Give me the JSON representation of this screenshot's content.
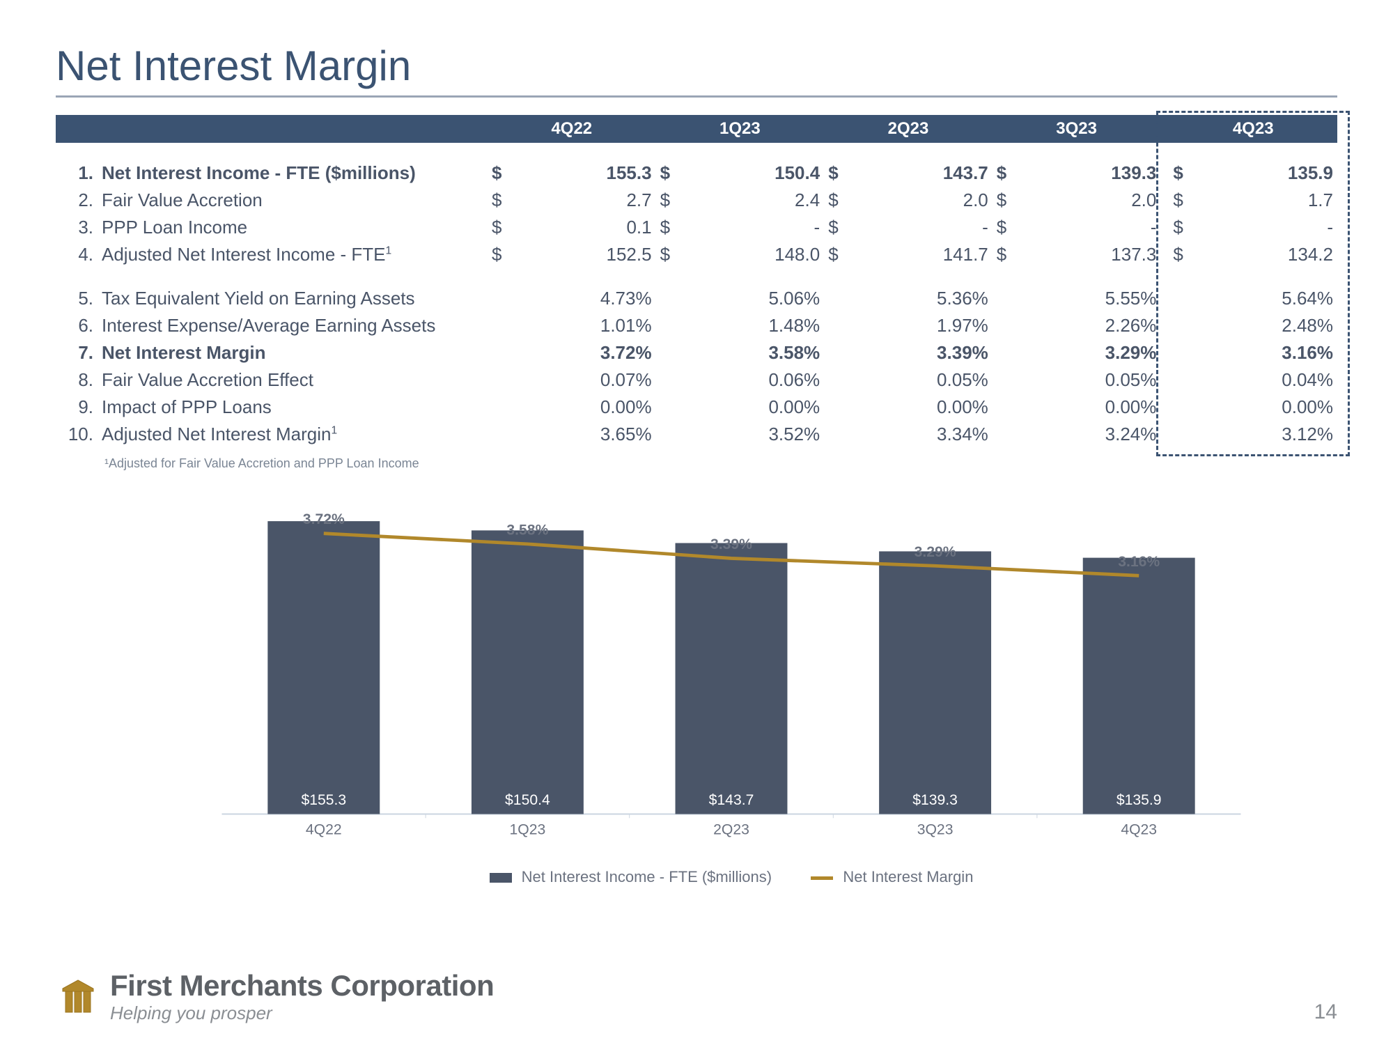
{
  "title": "Net Interest Margin",
  "periods": [
    "4Q22",
    "1Q23",
    "2Q23",
    "3Q23",
    "4Q23"
  ],
  "rows": [
    {
      "n": "1.",
      "label": "Net Interest Income - FTE ($millions)",
      "bold": true,
      "dollar": true,
      "vals": [
        "155.3",
        "150.4",
        "143.7",
        "139.3",
        "135.9"
      ]
    },
    {
      "n": "2.",
      "label": "Fair Value Accretion",
      "dollar": true,
      "vals": [
        "2.7",
        "2.4",
        "2.0",
        "2.0",
        "1.7"
      ]
    },
    {
      "n": "3.",
      "label": "PPP Loan Income",
      "dollar": true,
      "vals": [
        "0.1",
        "-",
        "-",
        "-",
        "-"
      ]
    },
    {
      "n": "4.",
      "label": "Adjusted Net Interest Income - FTE",
      "sup": "1",
      "dollar": true,
      "vals": [
        "152.5",
        "148.0",
        "141.7",
        "137.3",
        "134.2"
      ]
    },
    {
      "spacer": true
    },
    {
      "n": "5.",
      "label": "Tax Equivalent Yield on Earning Assets",
      "vals": [
        "4.73%",
        "5.06%",
        "5.36%",
        "5.55%",
        "5.64%"
      ]
    },
    {
      "n": "6.",
      "label": "Interest Expense/Average Earning Assets",
      "vals": [
        "1.01%",
        "1.48%",
        "1.97%",
        "2.26%",
        "2.48%"
      ]
    },
    {
      "n": "7.",
      "label": "Net Interest Margin",
      "bold": true,
      "vals": [
        "3.72%",
        "3.58%",
        "3.39%",
        "3.29%",
        "3.16%"
      ]
    },
    {
      "n": "8.",
      "label": "Fair Value Accretion Effect",
      "vals": [
        "0.07%",
        "0.06%",
        "0.05%",
        "0.05%",
        "0.04%"
      ]
    },
    {
      "n": "9.",
      "label": "Impact of PPP Loans",
      "vals": [
        "0.00%",
        "0.00%",
        "0.00%",
        "0.00%",
        "0.00%"
      ]
    },
    {
      "n": "10.",
      "label": "Adjusted Net Interest Margin",
      "sup": "1",
      "vals": [
        "3.65%",
        "3.52%",
        "3.34%",
        "3.24%",
        "3.12%"
      ]
    }
  ],
  "footnote": "¹Adjusted for Fair Value Accretion and PPP Loan Income",
  "chart": {
    "type": "bar_line_combo",
    "categories": [
      "4Q22",
      "1Q23",
      "2Q23",
      "3Q23",
      "4Q23"
    ],
    "bar_values": [
      155.3,
      150.4,
      143.7,
      139.3,
      135.9
    ],
    "bar_labels": [
      "$155.3",
      "$150.4",
      "$143.7",
      "$139.3",
      "$135.9"
    ],
    "bar_color": "#4a5568",
    "bar_ymax": 160,
    "line_values": [
      3.72,
      3.58,
      3.39,
      3.29,
      3.16
    ],
    "line_labels": [
      "3.72%",
      "3.58%",
      "3.39%",
      "3.29%",
      "3.16%"
    ],
    "line_color": "#b1882b",
    "line_ymax": 4.0,
    "line_width": 5,
    "axis_color": "#cbd5e0",
    "label_color_bar": "#ffffff",
    "label_color_line": "#6b7280",
    "label_fontsize": 22,
    "cat_fontsize": 22,
    "bar_width_ratio": 0.55
  },
  "legend": {
    "bar": "Net Interest Income - FTE ($millions)",
    "line": "Net Interest Margin"
  },
  "footer": {
    "company": "First Merchants Corporation",
    "tagline": "Helping you prosper",
    "page": "14",
    "logo_color": "#b1882b"
  },
  "colors": {
    "header_bg": "#3b5372",
    "title_color": "#3b5372",
    "text": "#4a5568",
    "dash_border": "#3b5372"
  }
}
